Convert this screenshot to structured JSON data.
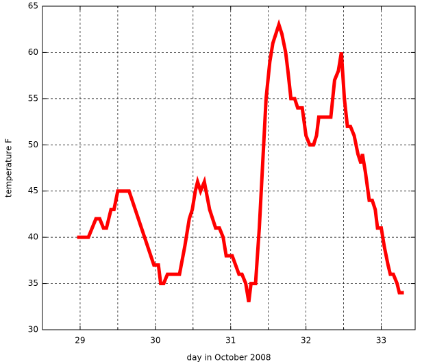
{
  "chart_data": {
    "type": "line",
    "xlabel": "day in October 2008",
    "ylabel": "temperature F",
    "x": [
      28.96,
      29.11,
      29.21,
      29.26,
      29.31,
      29.35,
      29.41,
      29.45,
      29.5,
      29.65,
      29.98,
      30.04,
      30.07,
      30.11,
      30.16,
      30.32,
      30.39,
      30.45,
      30.49,
      30.53,
      30.56,
      30.6,
      30.65,
      30.72,
      30.8,
      30.85,
      30.9,
      30.94,
      31.02,
      31.11,
      31.15,
      31.2,
      31.24,
      31.27,
      31.33,
      31.38,
      31.47,
      31.52,
      31.56,
      31.64,
      31.68,
      31.73,
      31.76,
      31.8,
      31.85,
      31.89,
      31.95,
      32.0,
      32.05,
      32.1,
      32.14,
      32.17,
      32.33,
      32.38,
      32.43,
      32.47,
      32.51,
      32.55,
      32.59,
      32.64,
      32.69,
      32.73,
      32.75,
      32.79,
      32.84,
      32.88,
      32.92,
      32.95,
      33.0,
      33.04,
      33.09,
      33.12,
      33.16,
      33.21,
      33.24,
      33.3
    ],
    "series": [
      {
        "color": "#ff0000",
        "values": [
          40,
          40,
          42,
          42,
          41,
          41,
          43,
          43,
          45,
          45,
          37,
          37,
          35,
          35,
          36,
          36,
          39,
          42,
          43,
          45,
          46,
          45,
          46,
          43,
          41,
          41,
          40,
          38,
          38,
          36,
          36,
          35,
          33,
          35,
          35,
          41,
          55,
          59,
          61,
          63,
          62,
          60,
          58,
          55,
          55,
          54,
          54,
          51,
          50,
          50,
          51,
          53,
          53,
          57,
          58,
          60,
          55,
          52,
          52,
          51,
          49,
          48,
          49,
          47,
          44,
          44,
          43,
          41,
          41,
          39,
          37,
          36,
          36,
          35,
          34,
          34
        ]
      }
    ],
    "xlim": [
      28.5,
      33.45
    ],
    "ylim": [
      30,
      65
    ],
    "xticks": [
      29,
      30,
      31,
      32,
      33
    ],
    "xgrid_minor": [
      29.5,
      30.5,
      31.5,
      32.5
    ],
    "yticks": [
      30,
      35,
      40,
      45,
      50,
      55,
      60,
      65
    ],
    "grid": true
  }
}
